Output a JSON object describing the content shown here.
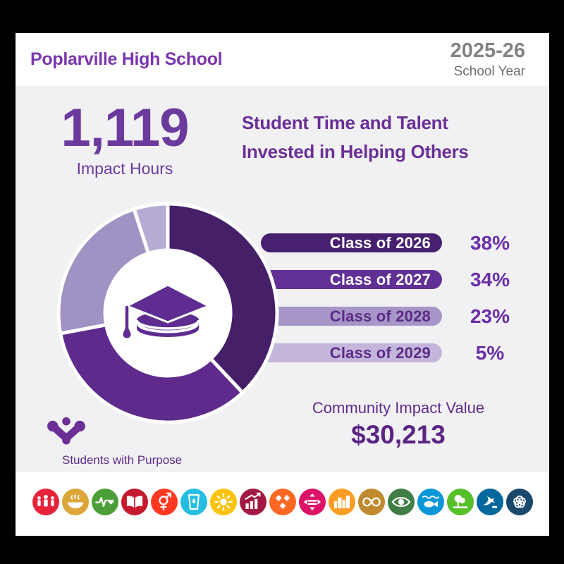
{
  "header": {
    "title": "Poplarville High School",
    "school_year_value": "2025-26",
    "school_year_label": "School Year"
  },
  "impact": {
    "hours_value": "1,119",
    "hours_label": "Impact Hours"
  },
  "headline": {
    "line1": "Student Time and Talent",
    "line2": "Invested in Helping Others"
  },
  "chart_data": {
    "type": "pie",
    "donut": true,
    "title": "Student Time and Talent Invested in Helping Others",
    "categories": [
      "Class of 2026",
      "Class of 2027",
      "Class of 2028",
      "Class of 2029"
    ],
    "values": [
      38,
      34,
      23,
      5
    ],
    "unit": "percent",
    "percent_labels": [
      "38%",
      "34%",
      "23%",
      "5%"
    ],
    "slice_colors": [
      "#452069",
      "#5e2b8c",
      "#a092c2",
      "#b6abd2"
    ],
    "bar_colors": [
      "#472170",
      "#613094",
      "#a695c7",
      "#c3b6da"
    ],
    "bar_text_colors": [
      "#ffffff",
      "#ffffff",
      "#5d2b87",
      "#5d2b87"
    ],
    "center_icon": "graduation-cap",
    "legend_position": "right"
  },
  "community": {
    "label": "Community Impact Value",
    "value": "$30,213"
  },
  "logo": {
    "label": "Students with Purpose",
    "color": "#6b2f96"
  },
  "sdg_icons": [
    {
      "name": "no-poverty-icon",
      "color": "#e5243b"
    },
    {
      "name": "zero-hunger-icon",
      "color": "#dda63a"
    },
    {
      "name": "good-health-icon",
      "color": "#4c9f38"
    },
    {
      "name": "quality-education-icon",
      "color": "#c5192d"
    },
    {
      "name": "gender-equality-icon",
      "color": "#ff3a21"
    },
    {
      "name": "clean-water-icon",
      "color": "#26bde2"
    },
    {
      "name": "clean-energy-icon",
      "color": "#fcc30b"
    },
    {
      "name": "decent-work-icon",
      "color": "#a21942"
    },
    {
      "name": "industry-innovation-icon",
      "color": "#fd6925"
    },
    {
      "name": "reduced-inequalities-icon",
      "color": "#dd1367"
    },
    {
      "name": "sustainable-cities-icon",
      "color": "#fd9d24"
    },
    {
      "name": "responsible-consumption-icon",
      "color": "#bf8b2e"
    },
    {
      "name": "climate-action-icon",
      "color": "#3f7e44"
    },
    {
      "name": "life-below-water-icon",
      "color": "#0a97d9"
    },
    {
      "name": "life-on-land-icon",
      "color": "#56c02b"
    },
    {
      "name": "peace-justice-icon",
      "color": "#00689d"
    },
    {
      "name": "partnerships-icon",
      "color": "#19486a"
    }
  ],
  "colors": {
    "background": "#000000",
    "card": "#ffffff",
    "panel": "#f1f0f2",
    "accent_purple": "#6b3a9d",
    "cap_purple": "#5f2d91"
  }
}
